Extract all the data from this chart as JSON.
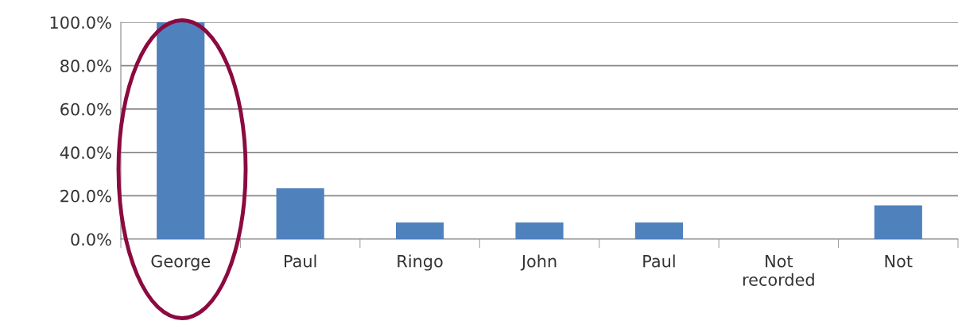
{
  "chart_data": {
    "type": "bar",
    "categories": [
      "George",
      "Paul",
      "Ringo",
      "John",
      "Paul",
      "Not\nrecorded",
      "Not"
    ],
    "series": [
      {
        "color": "#4f81bd",
        "values": [
          100,
          23.4,
          7.7,
          7.7,
          7.7,
          0,
          15.6
        ]
      }
    ],
    "ylim": [
      0,
      100
    ],
    "yticks": [
      {
        "value": 0,
        "label": "0.0%"
      },
      {
        "value": 20,
        "label": "20.0%"
      },
      {
        "value": 40,
        "label": "40.0%"
      },
      {
        "value": 60,
        "label": "60.0%"
      },
      {
        "value": 80,
        "label": "80.0%"
      },
      {
        "value": 100,
        "label": "100.0%"
      }
    ],
    "grid": "y",
    "legend": false
  }
}
